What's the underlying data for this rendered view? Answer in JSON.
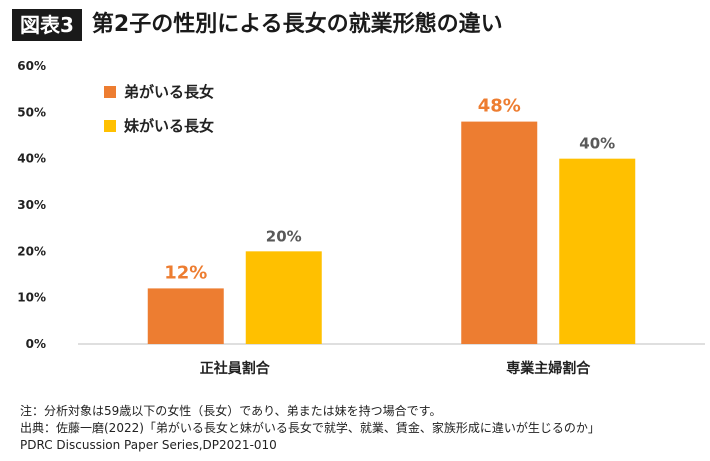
{
  "header": {
    "badge": "図表3",
    "title": "第2子の性別による長女の就業形態の違い"
  },
  "colors": {
    "series_1": "#ED7D31",
    "series_2": "#FFC000",
    "axis": "#BFBFBF",
    "value_label_default": "#595959"
  },
  "chart_data": {
    "type": "bar",
    "categories": [
      "正社員割合",
      "専業主婦割合"
    ],
    "series": [
      {
        "name": "弟がいる長女",
        "values": [
          12,
          48
        ],
        "labels": [
          "12%",
          "48%"
        ],
        "color": "#ED7D31",
        "label_color": "#ED7D31"
      },
      {
        "name": "妹がいる長女",
        "values": [
          20,
          40
        ],
        "labels": [
          "20%",
          "40%"
        ],
        "color": "#FFC000",
        "label_color": "#595959"
      }
    ],
    "ylim": [
      0,
      60
    ],
    "yticks": [
      "0%",
      "10%",
      "20%",
      "30%",
      "40%",
      "50%",
      "60%"
    ],
    "grid": false,
    "legend": "top-left",
    "xlabel": "",
    "ylabel": ""
  },
  "notes": {
    "line1": "注：分析対象は59歳以下の女性（長女）であり、弟または妹を持つ場合です。",
    "line2": "出典：佐藤一磨(2022)「弟がいる長女と妹がいる長女で就学、就業、賃金、家族形成に違いが生じるのか」",
    "line3": "PDRC Discussion Paper Series,DP2021-010"
  }
}
